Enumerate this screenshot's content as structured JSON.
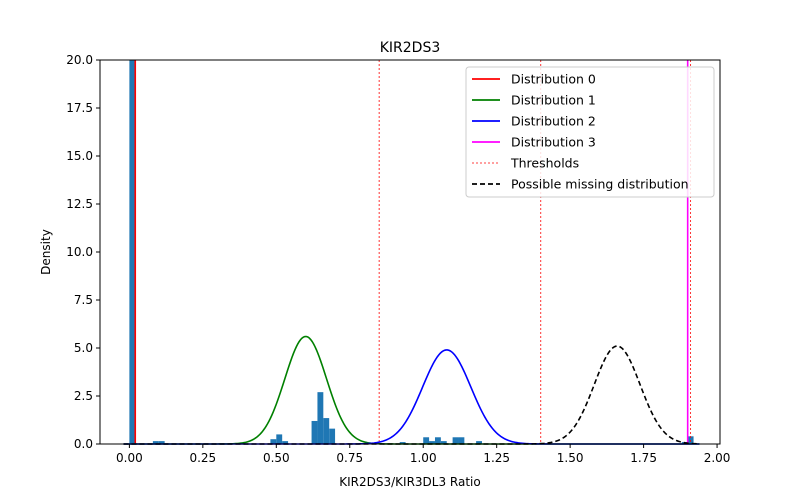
{
  "chart_data": {
    "type": "histogram+line",
    "title": "KIR2DS3",
    "xlabel": "KIR2DS3/KIR3DL3 Ratio",
    "ylabel": "Density",
    "xlim": [
      -0.1,
      2.01
    ],
    "ylim": [
      0,
      20
    ],
    "xticks": [
      "0.00",
      "0.25",
      "0.50",
      "0.75",
      "1.00",
      "1.25",
      "1.50",
      "1.75",
      "2.00"
    ],
    "yticks": [
      "0.0",
      "2.5",
      "5.0",
      "7.5",
      "10.0",
      "12.5",
      "15.0",
      "17.5",
      "20.0"
    ],
    "legend_position": "top-right",
    "histogram": {
      "color": "#1f77b4",
      "bin_width": 0.02,
      "bins": [
        {
          "x0": 0.0,
          "y": 20.0
        },
        {
          "x0": 0.08,
          "y": 0.15
        },
        {
          "x0": 0.1,
          "y": 0.15
        },
        {
          "x0": 0.48,
          "y": 0.25
        },
        {
          "x0": 0.5,
          "y": 0.5
        },
        {
          "x0": 0.52,
          "y": 0.15
        },
        {
          "x0": 0.62,
          "y": 1.2
        },
        {
          "x0": 0.64,
          "y": 2.7
        },
        {
          "x0": 0.66,
          "y": 1.35
        },
        {
          "x0": 0.68,
          "y": 0.8
        },
        {
          "x0": 0.92,
          "y": 0.1
        },
        {
          "x0": 1.0,
          "y": 0.35
        },
        {
          "x0": 1.02,
          "y": 0.15
        },
        {
          "x0": 1.04,
          "y": 0.35
        },
        {
          "x0": 1.06,
          "y": 0.15
        },
        {
          "x0": 1.1,
          "y": 0.35
        },
        {
          "x0": 1.12,
          "y": 0.35
        },
        {
          "x0": 1.18,
          "y": 0.15
        },
        {
          "x0": 1.88,
          "y": 0.1
        },
        {
          "x0": 1.9,
          "y": 0.4
        }
      ]
    },
    "series": [
      {
        "name": "Distribution 0",
        "color": "#ff0000",
        "kind": "spike",
        "x": 0.02,
        "peak": 20
      },
      {
        "name": "Distribution 1",
        "color": "#008000",
        "kind": "gaussian",
        "mean": 0.6,
        "sd": 0.071,
        "peak": 5.6
      },
      {
        "name": "Distribution 2",
        "color": "#0000ff",
        "kind": "gaussian",
        "mean": 1.08,
        "sd": 0.082,
        "peak": 4.9
      },
      {
        "name": "Distribution 3",
        "color": "#ff00ff",
        "kind": "spike",
        "x": 1.9,
        "peak": 20
      },
      {
        "name": "Possible missing distribution",
        "color": "#000000",
        "kind": "gaussian",
        "dash": true,
        "mean": 1.66,
        "sd": 0.078,
        "peak": 5.1
      }
    ],
    "thresholds": {
      "name": "Thresholds",
      "color": "#ff0000",
      "values": [
        0.85,
        1.4,
        1.91
      ]
    }
  }
}
